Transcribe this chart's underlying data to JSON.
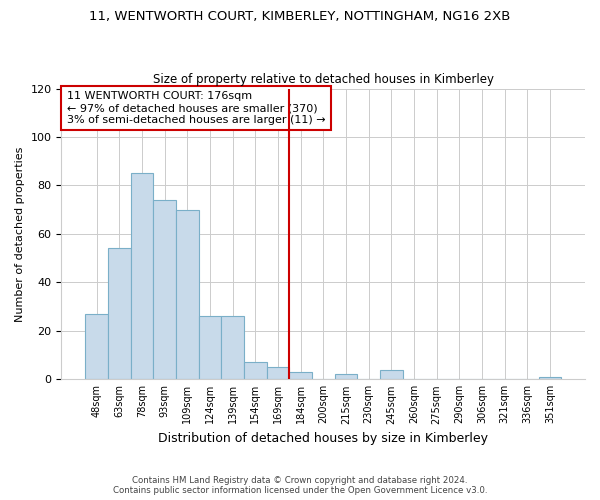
{
  "title": "11, WENTWORTH COURT, KIMBERLEY, NOTTINGHAM, NG16 2XB",
  "subtitle": "Size of property relative to detached houses in Kimberley",
  "xlabel": "Distribution of detached houses by size in Kimberley",
  "ylabel": "Number of detached properties",
  "footer_line1": "Contains HM Land Registry data © Crown copyright and database right 2024.",
  "footer_line2": "Contains public sector information licensed under the Open Government Licence v3.0.",
  "bin_labels": [
    "48sqm",
    "63sqm",
    "78sqm",
    "93sqm",
    "109sqm",
    "124sqm",
    "139sqm",
    "154sqm",
    "169sqm",
    "184sqm",
    "200sqm",
    "215sqm",
    "230sqm",
    "245sqm",
    "260sqm",
    "275sqm",
    "290sqm",
    "306sqm",
    "321sqm",
    "336sqm",
    "351sqm"
  ],
  "bar_values": [
    27,
    54,
    85,
    74,
    70,
    26,
    26,
    7,
    5,
    3,
    0,
    2,
    0,
    4,
    0,
    0,
    0,
    0,
    0,
    0,
    1
  ],
  "bar_color": "#c8daea",
  "bar_edge_color": "#7aafc8",
  "vline_color": "#cc0000",
  "annotation_text": "11 WENTWORTH COURT: 176sqm\n← 97% of detached houses are smaller (370)\n3% of semi-detached houses are larger (11) →",
  "ylim": [
    0,
    120
  ],
  "yticks": [
    0,
    20,
    40,
    60,
    80,
    100,
    120
  ],
  "background_color": "#ffffff",
  "grid_color": "#cccccc"
}
